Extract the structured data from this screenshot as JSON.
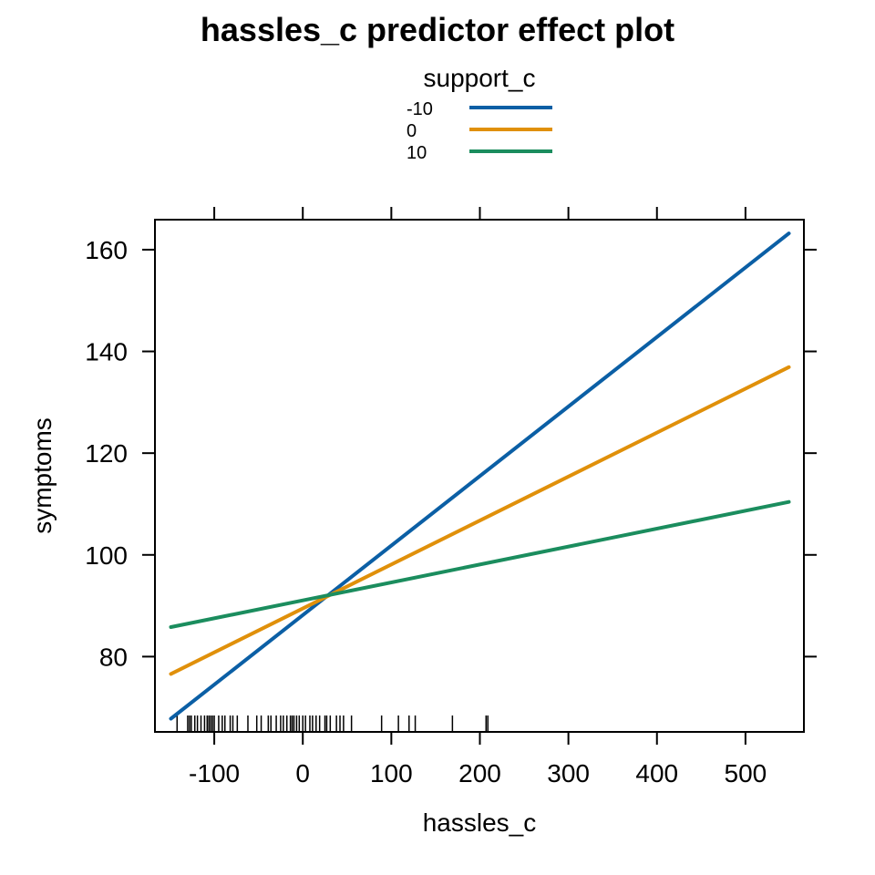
{
  "chart_data": {
    "type": "line",
    "title": "hassles_c predictor effect plot",
    "xlabel": "hassles_c",
    "ylabel": "symptoms",
    "xlim": [
      -167,
      566
    ],
    "ylim": [
      65.2,
      165.9
    ],
    "x_ticks": [
      -100,
      0,
      100,
      200,
      300,
      400,
      500
    ],
    "x_tick_labels": [
      "-100",
      "0",
      "100",
      "200",
      "300",
      "400",
      "500"
    ],
    "y_ticks": [
      80,
      100,
      120,
      140,
      160
    ],
    "y_tick_labels": [
      "80",
      "100",
      "120",
      "140",
      "160"
    ],
    "legend": {
      "title": "support_c",
      "placement": "top-center"
    },
    "series": [
      {
        "name": "-10",
        "color": "#0b5fa5",
        "x": [
          -149,
          549
        ],
        "y": [
          67.8,
          163.2
        ]
      },
      {
        "name": "0",
        "color": "#e0900a",
        "x": [
          -149,
          549
        ],
        "y": [
          76.6,
          136.9
        ]
      },
      {
        "name": "10",
        "color": "#1b8d5e",
        "x": [
          -149,
          549
        ],
        "y": [
          85.8,
          110.4
        ]
      }
    ],
    "rug": [
      -142,
      -130,
      -128,
      -126,
      -122,
      -119,
      -115,
      -111,
      -108,
      -106,
      -104,
      -102,
      -100,
      -95,
      -91,
      -88,
      -82,
      -79,
      -74,
      -62,
      -52,
      -47,
      -39,
      -36,
      -30,
      -25,
      -22,
      -18,
      -14,
      -12,
      -10,
      -7,
      -4,
      0,
      3,
      8,
      11,
      15,
      19,
      25,
      27,
      31,
      38,
      42,
      46,
      55,
      89,
      108,
      120,
      127,
      169,
      207,
      209
    ],
    "grid": false
  }
}
